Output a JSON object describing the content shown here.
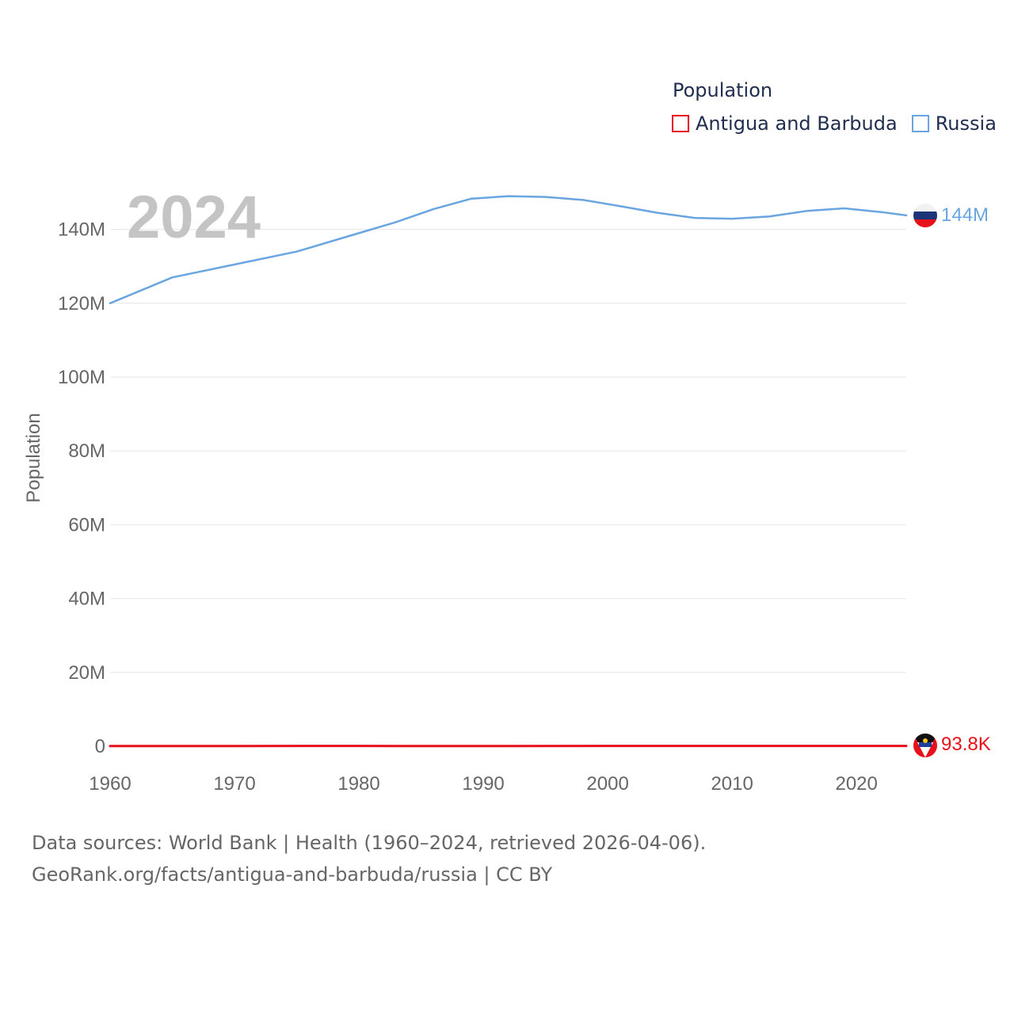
{
  "legend": {
    "title": "Population",
    "items": [
      {
        "label": "Antigua and Barbuda",
        "color": "#e8101a"
      },
      {
        "label": "Russia",
        "color": "#6aa5e0"
      }
    ]
  },
  "footer": {
    "line1": "Data sources: World Bank | Health (1960–2024, retrieved 2026-04-06).",
    "line2": "GeoRank.org/facts/antigua-and-barbuda/russia | CC BY"
  },
  "chart_data": {
    "type": "line",
    "title": "Population",
    "year_label": "2024",
    "xlabel": "",
    "ylabel": "Population",
    "xlim": [
      1960,
      2024
    ],
    "ylim": [
      0,
      150000000
    ],
    "x_ticks": [
      1960,
      1970,
      1980,
      1990,
      2000,
      2010,
      2020
    ],
    "y_ticks": [
      {
        "value": 0,
        "label": "0"
      },
      {
        "value": 20000000,
        "label": "20M"
      },
      {
        "value": 40000000,
        "label": "40M"
      },
      {
        "value": 60000000,
        "label": "60M"
      },
      {
        "value": 80000000,
        "label": "80M"
      },
      {
        "value": 100000000,
        "label": "100M"
      },
      {
        "value": 120000000,
        "label": "120M"
      },
      {
        "value": 140000000,
        "label": "140M"
      }
    ],
    "grid": true,
    "legend_position": "top-right",
    "series": [
      {
        "name": "Russia",
        "color": "#6aa5e0",
        "end_label": "144M",
        "x": [
          1960,
          1965,
          1970,
          1975,
          1980,
          1983,
          1986,
          1989,
          1992,
          1995,
          1998,
          2001,
          2004,
          2007,
          2010,
          2013,
          2016,
          2019,
          2022,
          2024
        ],
        "y": [
          120000000,
          127000000,
          130500000,
          134000000,
          139000000,
          142000000,
          145500000,
          148300000,
          149000000,
          148800000,
          148000000,
          146300000,
          144500000,
          143100000,
          142900000,
          143500000,
          145000000,
          145700000,
          144700000,
          143800000
        ]
      },
      {
        "name": "Antigua and Barbuda",
        "color": "#e8101a",
        "end_label": "93.8K",
        "x": [
          1960,
          1970,
          1980,
          1990,
          2000,
          2010,
          2020,
          2024
        ],
        "y": [
          55000,
          66000,
          69000,
          63000,
          76000,
          86000,
          93000,
          93800
        ]
      }
    ]
  }
}
